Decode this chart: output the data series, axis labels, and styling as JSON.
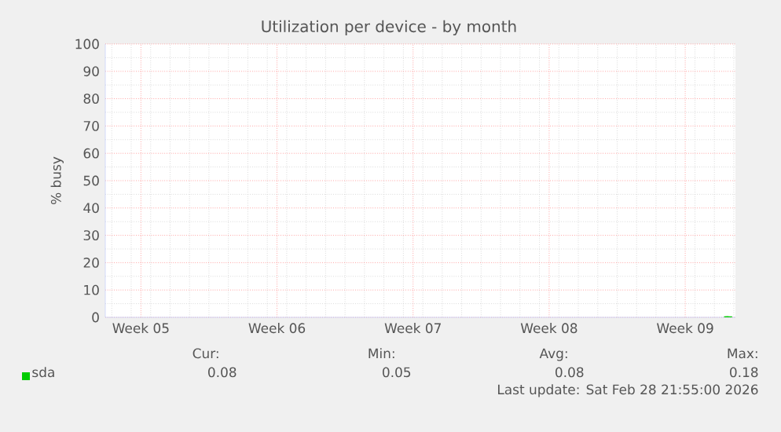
{
  "chart_data": {
    "type": "line",
    "title": "Utilization per device - by month",
    "ylabel": "% busy",
    "xlim": [
      "2026-01-27T16:00",
      "2026-03-01T02:00"
    ],
    "xticks": [
      {
        "value": "2026-01-29T12:00",
        "label": "Week 05"
      },
      {
        "value": "2026-02-05T12:00",
        "label": "Week 06"
      },
      {
        "value": "2026-02-12T12:00",
        "label": "Week 07"
      },
      {
        "value": "2026-02-19T12:00",
        "label": "Week 08"
      },
      {
        "value": "2026-02-26T12:00",
        "label": "Week 09"
      }
    ],
    "ylim": [
      0,
      100
    ],
    "yticks": [
      0,
      10,
      20,
      30,
      40,
      50,
      60,
      70,
      80,
      90,
      100
    ],
    "grid": true,
    "legend": "bottom",
    "series": [
      {
        "name": "sda",
        "color": "#00cc00",
        "x": [
          "2026-02-28T12:00",
          "2026-02-28T16:00",
          "2026-02-28T19:00",
          "2026-02-28T21:55"
        ],
        "values": [
          0.05,
          0.18,
          0.08,
          0.08
        ]
      }
    ],
    "annotations": [
      "Cur:",
      "Min:",
      "Avg:",
      "Max:",
      "0.08",
      "0.05",
      "0.08",
      "0.18",
      "Last update: Sat Feb 28 21:55:00 2026"
    ]
  }
}
